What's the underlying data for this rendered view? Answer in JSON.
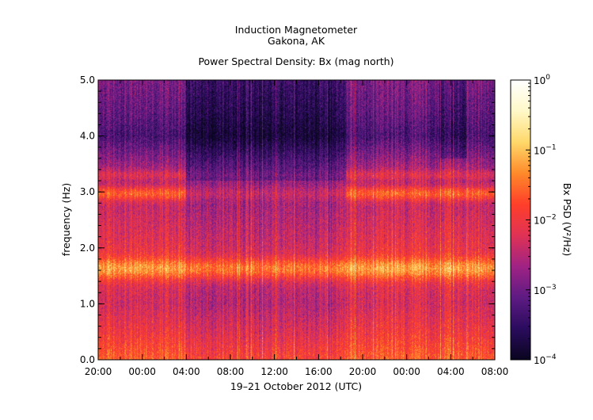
{
  "chart_data": {
    "type": "heatmap",
    "title_lines": [
      "Induction Magnetometer",
      "Gakona, AK"
    ],
    "subtitle": "Power Spectral Density: Bx (mag north)",
    "xlabel": "19–21 October 2012 (UTC)",
    "ylabel": "frequency (Hz)",
    "colorbar_label": "Bx PSD (V²/Hz)",
    "x_tick_labels": [
      "20:00",
      "00:00",
      "04:00",
      "08:00",
      "12:00",
      "16:00",
      "20:00",
      "00:00",
      "04:00",
      "08:00"
    ],
    "x_range_hours": [
      0,
      36
    ],
    "y_ticks": [
      0.0,
      1.0,
      2.0,
      3.0,
      4.0,
      5.0
    ],
    "y_tick_labels": [
      "0.0",
      "1.0",
      "2.0",
      "3.0",
      "4.0",
      "5.0"
    ],
    "ylim": [
      0,
      5
    ],
    "colorbar_scale": "log",
    "colorbar_range": [
      0.0001,
      1
    ],
    "colorbar_tick_values": [
      1,
      0.1,
      0.01,
      0.001,
      0.0001
    ],
    "colorbar_tick_labels": [
      {
        "base": "10",
        "exp": "0"
      },
      {
        "base": "10",
        "exp": "−1"
      },
      {
        "base": "10",
        "exp": "−2"
      },
      {
        "base": "10",
        "exp": "−3"
      },
      {
        "base": "10",
        "exp": "−4"
      }
    ],
    "colormap": "magma-like",
    "colors": {
      "stops": [
        "#0a0520",
        "#2b0c5e",
        "#5e1b83",
        "#a02384",
        "#e03255",
        "#ff3f2a",
        "#ff8a2a",
        "#ffd86a",
        "#fff8c8",
        "#ffffff"
      ],
      "frame": "#000000"
    },
    "spectral_bands_hz": [
      {
        "center": 1.63,
        "log10_psd": -1.2
      },
      {
        "center": 2.97,
        "log10_psd": -1.6
      },
      {
        "center": 3.3,
        "log10_psd": -2.2
      }
    ],
    "background_log10_psd_by_freq": [
      {
        "f": 0.0,
        "v": -1.6
      },
      {
        "f": 0.5,
        "v": -2.0
      },
      {
        "f": 1.0,
        "v": -2.3
      },
      {
        "f": 2.0,
        "v": -2.1
      },
      {
        "f": 3.5,
        "v": -2.7
      },
      {
        "f": 4.0,
        "v": -3.3
      },
      {
        "f": 4.4,
        "v": -3.1
      },
      {
        "f": 5.0,
        "v": -2.9
      }
    ],
    "quiet_interval_hours": [
      8,
      22.5
    ],
    "grid": false
  }
}
